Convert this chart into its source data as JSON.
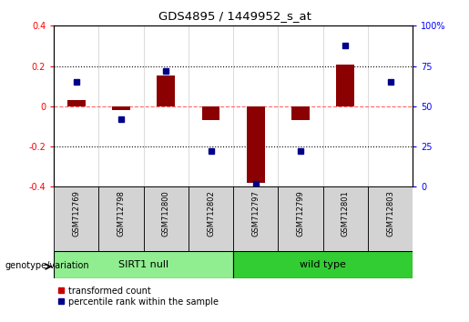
{
  "title": "GDS4895 / 1449952_s_at",
  "samples": [
    "GSM712769",
    "GSM712798",
    "GSM712800",
    "GSM712802",
    "GSM712797",
    "GSM712799",
    "GSM712801",
    "GSM712803"
  ],
  "red_values": [
    0.03,
    -0.02,
    0.155,
    -0.07,
    -0.38,
    -0.07,
    0.205,
    0.0
  ],
  "blue_values_pct": [
    65,
    42,
    72,
    22,
    2,
    22,
    88,
    65
  ],
  "groups": [
    {
      "label": "SIRT1 null",
      "start": 0,
      "end": 4,
      "color": "#90EE90"
    },
    {
      "label": "wild type",
      "start": 4,
      "end": 8,
      "color": "#32CD32"
    }
  ],
  "ylim_left": [
    -0.4,
    0.4
  ],
  "ylim_right": [
    0,
    100
  ],
  "yticks_left": [
    -0.4,
    -0.2,
    0.0,
    0.2,
    0.4
  ],
  "yticks_right": [
    0,
    25,
    50,
    75,
    100
  ],
  "red_color": "#8B0000",
  "blue_color": "#00008B",
  "dot_red_color": "#CC0000",
  "zero_line_red": "#FF6666",
  "background_color": "#FFFFFF",
  "group_label": "genotype/variation",
  "legend_red": "transformed count",
  "legend_blue": "percentile rank within the sample",
  "bar_width": 0.4
}
